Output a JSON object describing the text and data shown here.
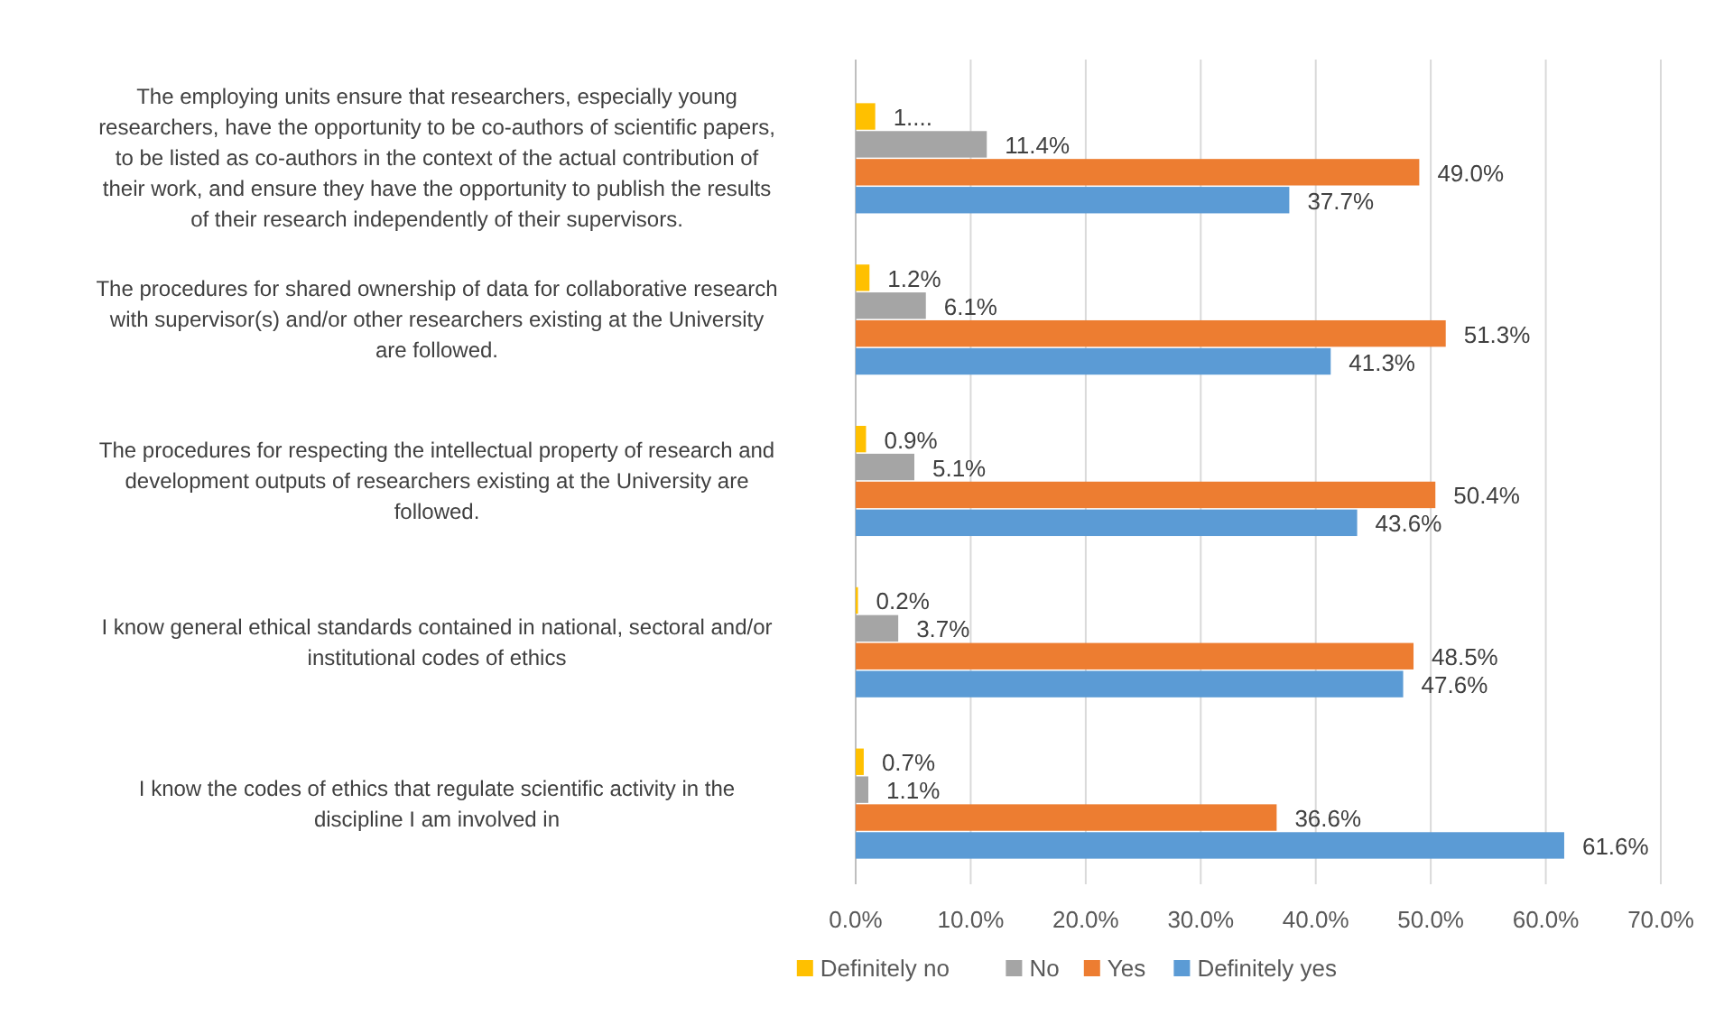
{
  "chart_data": {
    "type": "bar",
    "orientation": "horizontal",
    "categories": [
      "The employing units ensure that researchers, especially young researchers, have the opportunity to be co-authors of scientific papers, to be listed as co-authors in the context of the actual contribution of their work, and ensure they have the opportunity to publish the results of their research independently of their supervisors.",
      "The procedures for shared ownership of data for collaborative research with supervisor(s) and/or other researchers existing at the University are followed.",
      "The procedures for respecting the intellectual property of research and development outputs of researchers existing at the University are followed.",
      "I know general ethical standards contained in national, sectoral and/or institutional codes of ethics",
      "I know the codes of ethics that regulate scientific activity in the discipline I am involved in"
    ],
    "series": [
      {
        "name": "Definitely no",
        "color": "#ffc000",
        "values": [
          1.7,
          1.2,
          0.9,
          0.2,
          0.7
        ],
        "value_labels": [
          "1....",
          "1.2%",
          "0.9%",
          "0.2%",
          "0.7%"
        ]
      },
      {
        "name": "No",
        "color": "#a5a5a5",
        "values": [
          11.4,
          6.1,
          5.1,
          3.7,
          1.1
        ],
        "value_labels": [
          "11.4%",
          "6.1%",
          "5.1%",
          "3.7%",
          "1.1%"
        ]
      },
      {
        "name": "Yes",
        "color": "#ed7d31",
        "values": [
          49.0,
          51.3,
          50.4,
          48.5,
          36.6
        ],
        "value_labels": [
          "49.0%",
          "51.3%",
          "50.4%",
          "48.5%",
          "36.6%"
        ]
      },
      {
        "name": "Definitely yes",
        "color": "#5b9bd5",
        "values": [
          37.7,
          41.3,
          43.6,
          47.6,
          61.6
        ],
        "value_labels": [
          "37.7%",
          "41.3%",
          "43.6%",
          "47.6%",
          "61.6%"
        ]
      }
    ],
    "xlim": [
      0,
      70
    ],
    "xticks": [
      {
        "value": 0,
        "label": "0.0%"
      },
      {
        "value": 10,
        "label": "10.0%"
      },
      {
        "value": 20,
        "label": "20.0%"
      },
      {
        "value": 30,
        "label": "30.0%"
      },
      {
        "value": 40,
        "label": "40.0%"
      },
      {
        "value": 50,
        "label": "50.0%"
      },
      {
        "value": 60,
        "label": "60.0%"
      },
      {
        "value": 70,
        "label": "70.0%"
      }
    ],
    "grid": "x",
    "legend": "bottom"
  }
}
